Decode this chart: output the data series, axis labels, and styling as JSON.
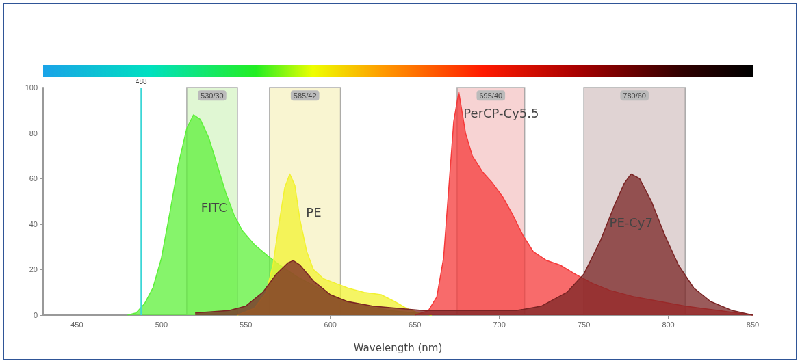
{
  "chart_data": {
    "type": "area",
    "xlabel": "Wavelength (nm)",
    "xlim": [
      430,
      850
    ],
    "xticks": [
      450,
      500,
      550,
      600,
      650,
      700,
      750,
      800,
      850
    ],
    "ylim": [
      0,
      100
    ],
    "yticks": [
      0,
      20,
      40,
      60,
      80,
      100
    ],
    "grid": false,
    "series": [
      {
        "name": "FITC",
        "color": "#5ef03a",
        "x": [
          480,
          485,
          490,
          495,
          500,
          505,
          510,
          515,
          519,
          523,
          528,
          533,
          538,
          543,
          548,
          555,
          563,
          570,
          580,
          590,
          600,
          610,
          620,
          635,
          650,
          660
        ],
        "values": [
          0,
          1,
          5,
          12,
          25,
          45,
          66,
          82,
          88,
          86,
          78,
          66,
          54,
          44,
          37,
          31,
          26,
          22,
          17,
          13,
          9,
          6,
          4,
          2,
          1,
          0
        ]
      },
      {
        "name": "PE",
        "color": "#f2f230",
        "x": [
          545,
          555,
          562,
          566,
          570,
          573,
          576,
          579,
          582,
          586,
          590,
          596,
          603,
          610,
          620,
          630,
          638,
          645,
          652,
          660
        ],
        "values": [
          0,
          3,
          10,
          22,
          42,
          56,
          62,
          57,
          42,
          28,
          20,
          16,
          14,
          12,
          10,
          9,
          6,
          3,
          1,
          0
        ]
      },
      {
        "name": "PerCP-Cy5.5",
        "color": "#f53a3a",
        "x": [
          650,
          658,
          663,
          667,
          670,
          673,
          676,
          680,
          684,
          690,
          696,
          702,
          708,
          714,
          720,
          728,
          736,
          745,
          755,
          765,
          780,
          795,
          810,
          830,
          850
        ],
        "values": [
          0,
          2,
          8,
          25,
          55,
          85,
          98,
          80,
          70,
          63,
          58,
          52,
          44,
          35,
          28,
          24,
          22,
          18,
          14,
          11,
          8,
          6,
          4,
          2,
          0
        ]
      },
      {
        "name": "PE-Cy7",
        "color": "#7a2424",
        "x": [
          520,
          540,
          550,
          560,
          568,
          575,
          578,
          582,
          590,
          600,
          610,
          625,
          640,
          655,
          680,
          710,
          725,
          740,
          750,
          760,
          768,
          774,
          778,
          783,
          790,
          798,
          806,
          815,
          825,
          838,
          850
        ],
        "values": [
          1,
          2,
          4,
          10,
          18,
          23,
          24,
          22,
          15,
          9,
          6,
          4,
          3,
          2,
          2,
          2,
          4,
          10,
          18,
          33,
          48,
          58,
          62,
          60,
          50,
          35,
          22,
          12,
          6,
          2,
          0
        ]
      }
    ],
    "ref_lines": [
      {
        "axis": "x",
        "value": 488,
        "label": "488",
        "color": "#3cd6d6"
      }
    ],
    "bands": [
      {
        "axis": "x",
        "from": 515,
        "to": 545,
        "label": "530/30",
        "color": "#d8f5c8"
      },
      {
        "axis": "x",
        "from": 564,
        "to": 606,
        "label": "585/42",
        "color": "#f8f2c6"
      },
      {
        "axis": "x",
        "from": 675,
        "to": 715,
        "label": "695/40",
        "color": "#f5c8c8"
      },
      {
        "axis": "x",
        "from": 750,
        "to": 810,
        "label": "780/60",
        "color": "#d8c8c8"
      }
    ]
  }
}
